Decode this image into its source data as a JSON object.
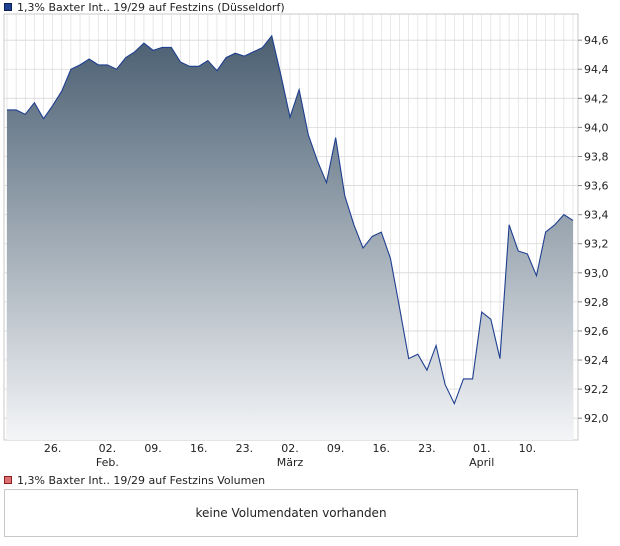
{
  "price_legend": {
    "label": "1,3% Baxter Int.. 19/29 auf Festzins (Düsseldorf)",
    "color": "#1f3f8f"
  },
  "volume_legend": {
    "label": "1,3% Baxter Int.. 19/29 auf Festzins Volumen",
    "color": "#e07070"
  },
  "volume_panel": {
    "message": "keine Volumendaten vorhanden"
  },
  "chart_data": {
    "type": "area",
    "series": [
      {
        "name": "1,3% Baxter Int.. 19/29 auf Festzins (Düsseldorf)",
        "values": [
          94.12,
          94.12,
          94.09,
          94.17,
          94.06,
          94.15,
          94.25,
          94.4,
          94.43,
          94.47,
          94.43,
          94.43,
          94.4,
          94.48,
          94.52,
          94.58,
          94.53,
          94.55,
          94.55,
          94.45,
          94.42,
          94.42,
          94.46,
          94.39,
          94.48,
          94.51,
          94.49,
          94.52,
          94.55,
          94.63,
          94.36,
          94.07,
          94.26,
          93.95,
          93.77,
          93.62,
          93.93,
          93.53,
          93.33,
          93.17,
          93.25,
          93.28,
          93.1,
          92.76,
          92.41,
          92.44,
          92.33,
          92.5,
          92.23,
          92.1,
          92.27,
          92.27,
          92.73,
          92.68,
          92.41,
          93.33,
          93.15,
          93.13,
          92.98,
          93.28,
          93.33,
          93.4,
          93.36
        ]
      }
    ],
    "x_ticks": [
      {
        "label": "26.",
        "index": 5
      },
      {
        "label": "02.",
        "index": 11
      },
      {
        "label": "09.",
        "index": 16
      },
      {
        "label": "16.",
        "index": 21
      },
      {
        "label": "23.",
        "index": 26
      },
      {
        "label": "02.",
        "index": 31
      },
      {
        "label": "09.",
        "index": 36
      },
      {
        "label": "16.",
        "index": 41
      },
      {
        "label": "23.",
        "index": 46
      },
      {
        "label": "01.",
        "index": 52
      },
      {
        "label": "10.",
        "index": 57
      }
    ],
    "month_labels": [
      {
        "label": "Feb.",
        "index": 11
      },
      {
        "label": "März",
        "index": 31
      },
      {
        "label": "April",
        "index": 52
      }
    ],
    "y_ticks": [
      {
        "value": 92.0,
        "label": "92,0"
      },
      {
        "value": 92.2,
        "label": "92,2"
      },
      {
        "value": 92.4,
        "label": "92,4"
      },
      {
        "value": 92.6,
        "label": "92,6"
      },
      {
        "value": 92.8,
        "label": "92,8"
      },
      {
        "value": 93.0,
        "label": "93,0"
      },
      {
        "value": 93.2,
        "label": "93,2"
      },
      {
        "value": 93.4,
        "label": "93,4"
      },
      {
        "value": 93.6,
        "label": "93,6"
      },
      {
        "value": 93.8,
        "label": "93,8"
      },
      {
        "value": 94.0,
        "label": "94,0"
      },
      {
        "value": 94.2,
        "label": "94,2"
      },
      {
        "value": 94.4,
        "label": "94,4"
      },
      {
        "value": 94.6,
        "label": "94,6"
      }
    ],
    "ylim": [
      91.85,
      94.78
    ],
    "grid": true,
    "colors": {
      "line": "#1f3f8f",
      "fill_top": "#4a5f72",
      "fill_bottom": "#f4f5f7",
      "grid": "#d8d8d8",
      "axis": "#bcbcbc"
    }
  }
}
